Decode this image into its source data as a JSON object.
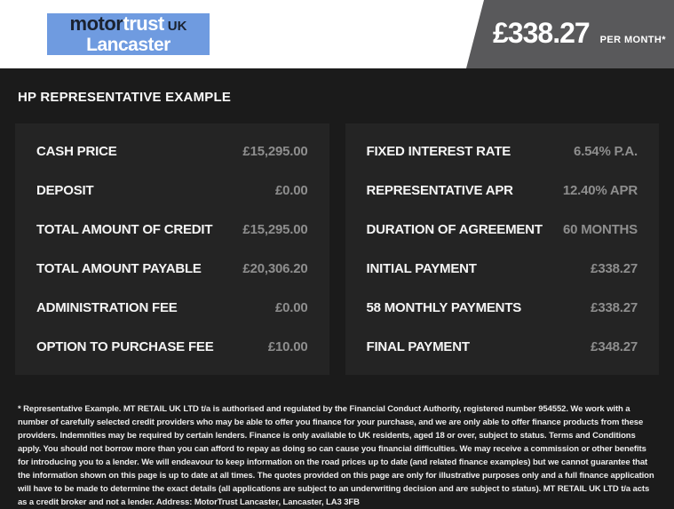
{
  "header": {
    "logo": {
      "brand_part1": "motor",
      "brand_part2": "trust",
      "brand_suffix": "UK",
      "location": "Lancaster"
    },
    "price_banner": {
      "amount": "£338.27",
      "period": "PER MONTH*"
    }
  },
  "title": "HP REPRESENTATIVE EXAMPLE",
  "finance_table": {
    "left_rows": [
      {
        "label": "CASH PRICE",
        "value": "£15,295.00"
      },
      {
        "label": "DEPOSIT",
        "value": "£0.00"
      },
      {
        "label": "TOTAL AMOUNT OF CREDIT",
        "value": "£15,295.00"
      },
      {
        "label": "TOTAL AMOUNT PAYABLE",
        "value": "£20,306.20"
      },
      {
        "label": "ADMINISTRATION FEE",
        "value": "£0.00"
      },
      {
        "label": "OPTION TO PURCHASE FEE",
        "value": "£10.00"
      }
    ],
    "right_rows": [
      {
        "label": "FIXED INTEREST RATE",
        "value": "6.54% P.A."
      },
      {
        "label": "REPRESENTATIVE APR",
        "value": "12.40% APR"
      },
      {
        "label": "DURATION OF AGREEMENT",
        "value": "60 MONTHS"
      },
      {
        "label": "INITIAL PAYMENT",
        "value": "£338.27"
      },
      {
        "label": "58 MONTHLY PAYMENTS",
        "value": "£338.27"
      },
      {
        "label": "FINAL PAYMENT",
        "value": "£348.27"
      }
    ]
  },
  "disclaimer": "* Representative Example. MT RETAIL UK LTD t/a is authorised and regulated by the Financial Conduct Authority, registered number 954552. We work with a number of carefully selected credit providers who may be able to offer you finance for your purchase, and we are only able to offer finance products from these providers. Indemnities may be required by certain lenders. Finance is only available to UK residents, aged 18 or over, subject to status. Terms and Conditions apply. You should not borrow more than you can afford to repay as doing so can cause you financial difficulties. We may receive a commission or other benefits for introducing you to a lender. We will endeavour to keep information on the road prices up to date (and related finance examples) but we cannot guarantee that the information shown on this page is up to date at all times. The quotes provided on this page are only for illustrative purposes only and a full finance application will have to be made to determine the exact details (all applications are subject to an underwriting decision and are subject to status). MT RETAIL UK LTD t/a acts as a credit broker and not a lender. Address: MotorTrust Lancaster, Lancaster, LA3 3FB",
  "colors": {
    "page_background": "#1b1b1b",
    "panel_background": "#242424",
    "label_text": "#f5f5f5",
    "value_text": "#8e8e8e",
    "logo_blue": "#6f9be0",
    "logo_navy": "#1a2230",
    "banner_gray": "#59595b",
    "disclaimer_text": "#ebebeb"
  }
}
